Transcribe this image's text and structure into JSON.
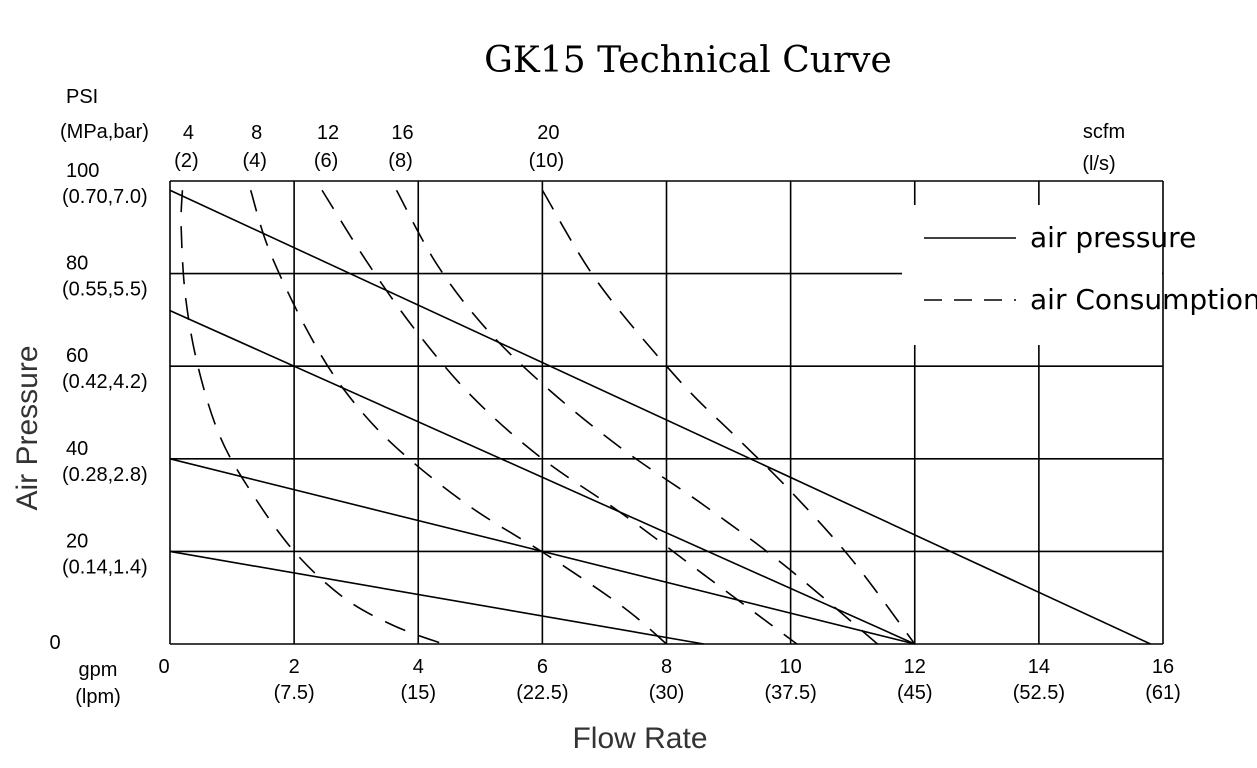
{
  "chart_data": {
    "type": "line",
    "title": "GK15 Technical Curve",
    "xlabel": "Flow Rate",
    "ylabel": "Air Pressure",
    "x_unit_label": "gpm",
    "x_unit_label_alt": "(lpm)",
    "y_unit_label": "PSI",
    "y_unit_label_alt": "(MPa,bar)",
    "consumption_unit_label": "scfm",
    "consumption_unit_label_alt": "(l/s)",
    "xlim": [
      0,
      16
    ],
    "ylim": [
      0,
      100
    ],
    "grid": true,
    "legend_position": "top-right",
    "x_ticks": [
      {
        "value": 0,
        "label": "0",
        "sub": ""
      },
      {
        "value": 2,
        "label": "2",
        "sub": "(7.5)"
      },
      {
        "value": 4,
        "label": "4",
        "sub": "(15)"
      },
      {
        "value": 6,
        "label": "6",
        "sub": "(22.5)"
      },
      {
        "value": 8,
        "label": "8",
        "sub": "(30)"
      },
      {
        "value": 10,
        "label": "10",
        "sub": "(37.5)"
      },
      {
        "value": 12,
        "label": "12",
        "sub": "(45)"
      },
      {
        "value": 14,
        "label": "14",
        "sub": "(52.5)"
      },
      {
        "value": 16,
        "label": "16",
        "sub": "(61)"
      }
    ],
    "y_ticks": [
      {
        "value": 0,
        "label": "0",
        "sub": ""
      },
      {
        "value": 20,
        "label": "20",
        "sub": "(0.14,1.4)"
      },
      {
        "value": 40,
        "label": "40",
        "sub": "(0.28,2.8)"
      },
      {
        "value": 60,
        "label": "60",
        "sub": "(0.42,4.2)"
      },
      {
        "value": 80,
        "label": "80",
        "sub": "(0.55,5.5)"
      },
      {
        "value": 100,
        "label": "100",
        "sub": "(0.70,7.0)"
      }
    ],
    "consumption_ticks": [
      {
        "label": "4",
        "sub": "(2)",
        "x": 0.2
      },
      {
        "label": "8",
        "sub": "(4)",
        "x": 1.3
      },
      {
        "label": "12",
        "sub": "(6)",
        "x": 2.45
      },
      {
        "label": "16",
        "sub": "(8)",
        "x": 3.65
      },
      {
        "label": "20",
        "sub": "(10)",
        "x": 6.0
      }
    ],
    "legend": [
      {
        "label": "air pressure",
        "style": "solid"
      },
      {
        "label": "air Consumption",
        "style": "dashed"
      }
    ],
    "series": [
      {
        "style": "solid",
        "x": [
          0,
          15.8
        ],
        "y": [
          98,
          0
        ]
      },
      {
        "style": "solid",
        "x": [
          0,
          12
        ],
        "y": [
          72,
          0
        ]
      },
      {
        "style": "solid",
        "x": [
          0,
          12
        ],
        "y": [
          40,
          0
        ]
      },
      {
        "style": "solid",
        "x": [
          0,
          8.6
        ],
        "y": [
          20,
          0
        ]
      },
      {
        "style": "dashed",
        "x": [
          0.2,
          0.18,
          0.25,
          0.45,
          0.8,
          1.3,
          2.0,
          2.8,
          3.6,
          4.4
        ],
        "y": [
          98,
          90,
          75,
          60,
          45,
          33,
          20,
          10,
          4,
          0
        ]
      },
      {
        "style": "dashed",
        "x": [
          1.3,
          1.6,
          2.2,
          2.8,
          3.6,
          4.8,
          6.1,
          7.3,
          8.0
        ],
        "y": [
          98,
          85,
          68,
          55,
          43,
          30,
          19,
          8,
          0
        ]
      },
      {
        "style": "dashed",
        "x": [
          2.45,
          3.2,
          4.0,
          4.9,
          6.0,
          7.3,
          8.6,
          10.1
        ],
        "y": [
          98,
          82,
          67,
          53,
          40,
          28,
          15,
          0
        ]
      },
      {
        "style": "dashed",
        "x": [
          3.65,
          4.3,
          5.1,
          6.1,
          7.3,
          8.6,
          9.9,
          11.4
        ],
        "y": [
          98,
          82,
          68,
          55,
          42,
          30,
          17,
          0
        ]
      },
      {
        "style": "dashed",
        "x": [
          6.0,
          6.9,
          8.2,
          9.1,
          10.0,
          11.0,
          12.0
        ],
        "y": [
          98,
          78,
          57,
          45,
          33,
          18,
          0
        ]
      }
    ]
  }
}
